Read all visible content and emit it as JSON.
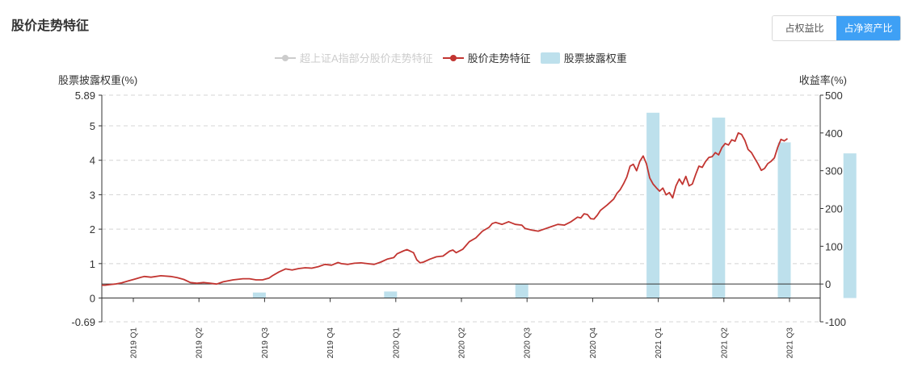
{
  "page": {
    "title": "股价走势特征",
    "toggle": [
      {
        "label": "占权益比",
        "active": false
      },
      {
        "label": "占净资产比",
        "active": true
      }
    ]
  },
  "legend": [
    {
      "label": "超上证A指部分股价走势特征",
      "active": false,
      "color": "#cccccc",
      "shape": "line-circle"
    },
    {
      "label": "股价走势特征",
      "active": true,
      "color": "#c23531",
      "shape": "line-circle"
    },
    {
      "label": "股票披露权重",
      "active": true,
      "color": "#bde0ec",
      "shape": "rect"
    }
  ],
  "chart_data": {
    "type": "bar+line",
    "left_axis": {
      "label": "股票披露权重(%)",
      "min": -0.69,
      "max": 5.89,
      "ticks": [
        "5.89",
        "5",
        "4",
        "3",
        "2",
        "1",
        "0",
        "-0.69"
      ],
      "tick_values": [
        5.89,
        5,
        4,
        3,
        2,
        1,
        0,
        -0.69
      ]
    },
    "right_axis": {
      "label": "收益率(%)",
      "min": -100,
      "max": 500,
      "ticks": [
        "500",
        "400",
        "300",
        "200",
        "100",
        "0",
        "-100"
      ],
      "tick_values": [
        500,
        400,
        300,
        200,
        100,
        0,
        -100
      ]
    },
    "categories": [
      "2019 Q1",
      "2019 Q2",
      "2019 Q3",
      "2019 Q4",
      "2020 Q1",
      "2020 Q2",
      "2020 Q3",
      "2020 Q4",
      "2021 Q1",
      "2021 Q2",
      "2021 Q3"
    ],
    "bars": {
      "name": "股票披露权重",
      "color": "#bde0ec",
      "values": [
        null,
        0.16,
        null,
        0.19,
        null,
        0.42,
        null,
        5.38,
        5.24,
        4.52,
        4.2
      ]
    },
    "line": {
      "name": "股价走势特征",
      "color": "#c23531",
      "axis": "right",
      "points": [
        [
          0.0,
          -3
        ],
        [
          0.05,
          -3
        ],
        [
          0.1,
          -2
        ],
        [
          0.15,
          -1
        ],
        [
          0.2,
          0
        ],
        [
          0.3,
          3
        ],
        [
          0.4,
          8
        ],
        [
          0.5,
          13
        ],
        [
          0.6,
          18
        ],
        [
          0.65,
          20
        ],
        [
          0.75,
          18
        ],
        [
          0.9,
          22
        ],
        [
          1.05,
          20
        ],
        [
          1.15,
          17
        ],
        [
          1.25,
          12
        ],
        [
          1.35,
          4
        ],
        [
          1.45,
          2
        ],
        [
          1.55,
          4
        ],
        [
          1.65,
          2
        ],
        [
          1.75,
          0
        ],
        [
          1.85,
          6
        ],
        [
          2.0,
          11
        ],
        [
          2.15,
          14
        ],
        [
          2.25,
          14
        ],
        [
          2.35,
          11
        ],
        [
          2.45,
          11
        ],
        [
          2.55,
          16
        ],
        [
          2.6,
          22
        ],
        [
          2.7,
          32
        ],
        [
          2.8,
          40
        ],
        [
          2.9,
          37
        ],
        [
          3.0,
          41
        ],
        [
          3.1,
          43
        ],
        [
          3.2,
          42
        ],
        [
          3.3,
          46
        ],
        [
          3.4,
          52
        ],
        [
          3.5,
          50
        ],
        [
          3.6,
          57
        ],
        [
          3.65,
          54
        ],
        [
          3.75,
          52
        ],
        [
          3.85,
          55
        ],
        [
          3.95,
          56
        ],
        [
          4.05,
          54
        ],
        [
          4.15,
          52
        ],
        [
          4.25,
          58
        ],
        [
          4.35,
          66
        ],
        [
          4.45,
          70
        ],
        [
          4.5,
          80
        ],
        [
          4.6,
          88
        ],
        [
          4.65,
          91
        ],
        [
          4.75,
          83
        ],
        [
          4.8,
          64
        ],
        [
          4.85,
          56
        ],
        [
          4.9,
          58
        ],
        [
          5.0,
          66
        ],
        [
          5.1,
          72
        ],
        [
          5.2,
          74
        ],
        [
          5.3,
          87
        ],
        [
          5.35,
          90
        ],
        [
          5.4,
          83
        ],
        [
          5.5,
          92
        ],
        [
          5.55,
          102
        ],
        [
          5.6,
          112
        ],
        [
          5.7,
          122
        ],
        [
          5.8,
          140
        ],
        [
          5.9,
          150
        ],
        [
          5.95,
          160
        ],
        [
          6.0,
          163
        ],
        [
          6.1,
          158
        ],
        [
          6.2,
          165
        ],
        [
          6.3,
          158
        ],
        [
          6.4,
          156
        ],
        [
          6.45,
          147
        ],
        [
          6.55,
          143
        ],
        [
          6.65,
          140
        ],
        [
          6.75,
          146
        ],
        [
          6.85,
          152
        ],
        [
          6.95,
          158
        ],
        [
          7.05,
          156
        ],
        [
          7.15,
          165
        ],
        [
          7.25,
          177
        ],
        [
          7.3,
          175
        ],
        [
          7.35,
          186
        ],
        [
          7.4,
          184
        ],
        [
          7.45,
          173
        ],
        [
          7.5,
          172
        ],
        [
          7.55,
          182
        ],
        [
          7.6,
          195
        ],
        [
          7.7,
          209
        ],
        [
          7.8,
          225
        ],
        [
          7.85,
          240
        ],
        [
          7.9,
          250
        ],
        [
          7.95,
          265
        ],
        [
          8.0,
          283
        ],
        [
          8.05,
          312
        ],
        [
          8.1,
          317
        ],
        [
          8.15,
          300
        ],
        [
          8.2,
          325
        ],
        [
          8.25,
          339
        ],
        [
          8.3,
          318
        ],
        [
          8.35,
          281
        ],
        [
          8.4,
          265
        ],
        [
          8.45,
          255
        ],
        [
          8.5,
          246
        ],
        [
          8.55,
          254
        ],
        [
          8.6,
          236
        ],
        [
          8.65,
          242
        ],
        [
          8.7,
          228
        ],
        [
          8.75,
          260
        ],
        [
          8.8,
          278
        ],
        [
          8.85,
          264
        ],
        [
          8.9,
          285
        ],
        [
          8.95,
          260
        ],
        [
          9.0,
          265
        ],
        [
          9.05,
          290
        ],
        [
          9.1,
          312
        ],
        [
          9.15,
          309
        ],
        [
          9.2,
          324
        ],
        [
          9.25,
          335
        ],
        [
          9.3,
          337
        ],
        [
          9.35,
          348
        ],
        [
          9.4,
          342
        ],
        [
          9.45,
          361
        ],
        [
          9.5,
          372
        ],
        [
          9.55,
          368
        ],
        [
          9.6,
          382
        ],
        [
          9.65,
          378
        ],
        [
          9.7,
          400
        ],
        [
          9.75,
          396
        ],
        [
          9.8,
          380
        ],
        [
          9.85,
          356
        ],
        [
          9.9,
          348
        ],
        [
          9.95,
          333
        ],
        [
          10.0,
          318
        ],
        [
          10.05,
          301
        ],
        [
          10.1,
          306
        ],
        [
          10.15,
          319
        ],
        [
          10.2,
          325
        ],
        [
          10.25,
          334
        ],
        [
          10.3,
          362
        ],
        [
          10.35,
          383
        ],
        [
          10.4,
          379
        ],
        [
          10.45,
          385
        ]
      ]
    },
    "grid": true
  }
}
